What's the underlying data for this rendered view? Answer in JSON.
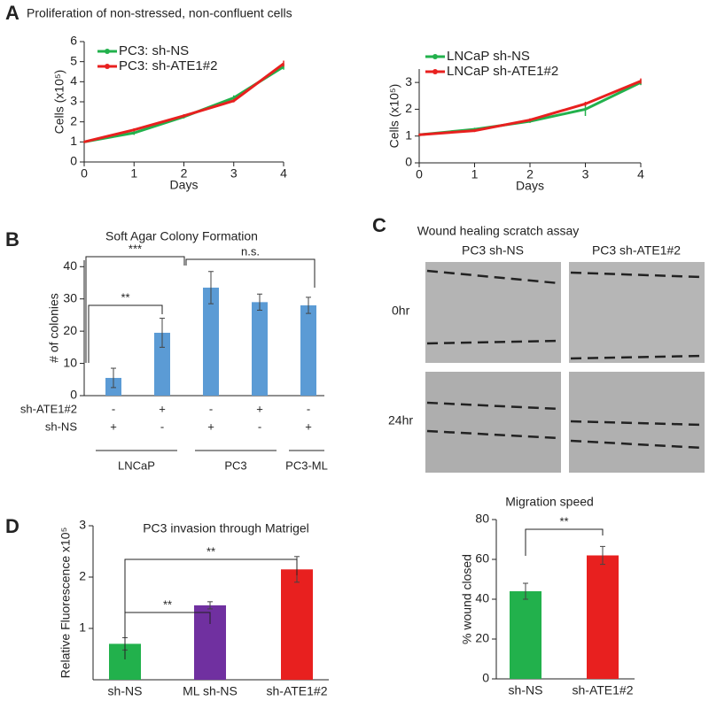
{
  "panel_labels": [
    "A",
    "B",
    "C",
    "D"
  ],
  "header": {
    "title": "Proliferation of non-stressed, non-confluent cells"
  },
  "scratch_assay": {
    "title": "Wound healing scratch assay",
    "columns": [
      "PC3 sh-NS",
      "PC3 sh-ATE1#2"
    ],
    "rows": [
      "0hr",
      "24hr"
    ]
  },
  "chart_data": [
    {
      "type": "line",
      "x": [
        0,
        1,
        2,
        3,
        4
      ],
      "xlim": [
        0,
        4
      ],
      "xticks": [
        0,
        1,
        2,
        3,
        4
      ],
      "ylim": [
        0,
        6
      ],
      "yticks": [
        0,
        1,
        2,
        3,
        4,
        5,
        6
      ],
      "xlabel": "Days",
      "ylabel": "Cells (x10⁵)",
      "series": [
        {
          "name": "PC3: sh-NS",
          "color": "#22b14c",
          "values": [
            1,
            1.45,
            2.25,
            3.2,
            4.75
          ],
          "errors": [
            0.05,
            0.1,
            0.08,
            0.12,
            0.15
          ]
        },
        {
          "name": "PC3: sh-ATE1#2",
          "color": "#e8201f",
          "values": [
            1,
            1.6,
            2.3,
            3.05,
            4.9
          ],
          "errors": [
            0.05,
            0.08,
            0.08,
            0.08,
            0.15
          ]
        }
      ]
    },
    {
      "type": "line",
      "x": [
        0,
        1,
        2,
        3,
        4
      ],
      "xlim": [
        0,
        4
      ],
      "xticks": [
        0,
        1,
        2,
        3,
        4
      ],
      "ylim": [
        0,
        3.5
      ],
      "yticks": [
        0,
        1,
        2,
        3
      ],
      "xlabel": "Days",
      "ylabel": "Cells (x10⁵)",
      "series": [
        {
          "name": "LNCaP sh-NS",
          "color": "#22b14c",
          "values": [
            1.05,
            1.25,
            1.55,
            2.0,
            3.0
          ],
          "errors": [
            0.04,
            0.06,
            0.06,
            0.25,
            0.1
          ]
        },
        {
          "name": "LNCaP sh-ATE1#2",
          "color": "#e8201f",
          "values": [
            1.05,
            1.2,
            1.6,
            2.2,
            3.05
          ],
          "errors": [
            0.04,
            0.05,
            0.06,
            0.08,
            0.1
          ]
        }
      ]
    },
    {
      "type": "bar",
      "title": "Soft Agar Colony Formation",
      "ylabel": "# of colonies",
      "categories": [
        null,
        null,
        null,
        null,
        null
      ],
      "values": [
        5.5,
        19.5,
        33.5,
        29,
        28
      ],
      "errors": [
        3,
        4.5,
        5,
        2.5,
        2.5
      ],
      "color": "#5b9bd5",
      "ylim": [
        0,
        42
      ],
      "yticks": [
        0,
        10,
        20,
        30,
        40
      ],
      "conditions": [
        {
          "name": "sh-ATE1#2",
          "values": [
            "-",
            "+",
            "-",
            "+",
            "-"
          ]
        },
        {
          "name": "sh-NS",
          "values": [
            "+",
            "-",
            "+",
            "-",
            "+"
          ]
        }
      ],
      "groups": [
        "LNCaP",
        "PC3",
        "PC3-ML"
      ],
      "annotations": [
        "***",
        "**",
        "n.s."
      ]
    },
    {
      "type": "bar",
      "title": "PC3 invasion through Matrigel",
      "ylabel": "Relative Fluorescence x10⁵",
      "categories": [
        "sh-NS",
        "ML sh-NS",
        "sh-ATE1#2"
      ],
      "values": [
        0.7,
        1.45,
        2.15
      ],
      "errors": [
        0.12,
        0.07,
        0.25
      ],
      "colors": [
        "#22b14c",
        "#7030a0",
        "#e8201f"
      ],
      "ylim": [
        0,
        3
      ],
      "yticks": [
        1,
        2,
        3
      ],
      "annotations": [
        "**",
        "**"
      ]
    },
    {
      "type": "bar",
      "title": "Migration speed",
      "ylabel": "% wound closed",
      "categories": [
        "sh-NS",
        "sh-ATE1#2"
      ],
      "values": [
        44,
        62
      ],
      "errors": [
        4,
        4.5
      ],
      "colors": [
        "#22b14c",
        "#e8201f"
      ],
      "ylim": [
        0,
        80
      ],
      "yticks": [
        0,
        20,
        40,
        60,
        80
      ],
      "annotations": [
        "**"
      ]
    }
  ]
}
